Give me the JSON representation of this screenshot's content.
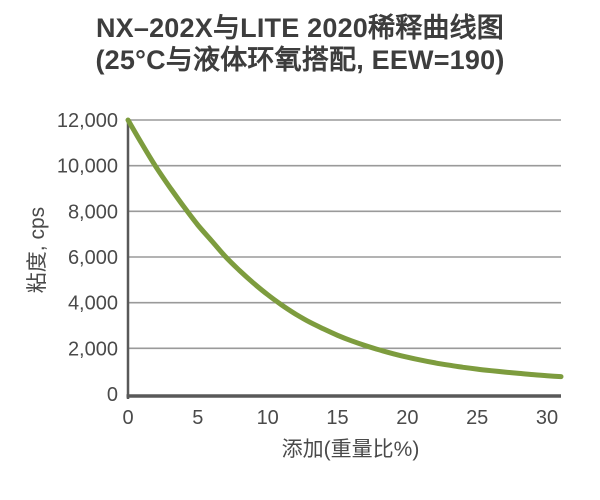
{
  "page": {
    "background": "#ffffff"
  },
  "header": {
    "title": "NX–202X与LITE 2020稀释曲线图",
    "subtitle": "(25°C与液体环氧搭配, EEW=190)",
    "color": "#3d3d3d"
  },
  "chart_data": {
    "type": "line",
    "title": "NX–202X与LITE 2020稀释曲线图",
    "subtitle": "(25°C与液体环氧搭配, EEW=190)",
    "xlabel": "添加(重量比%)",
    "ylabel": "粘度, cps",
    "xlim": [
      0,
      31
    ],
    "ylim": [
      0,
      12000
    ],
    "x_ticks": [
      0,
      5,
      10,
      15,
      20,
      25,
      30
    ],
    "x_tick_labels": [
      "0",
      "5",
      "10",
      "15",
      "20",
      "25",
      "30"
    ],
    "y_ticks": [
      0,
      2000,
      4000,
      6000,
      8000,
      10000,
      12000
    ],
    "y_tick_labels": [
      "0",
      "2,000",
      "4,000",
      "6,000",
      "8,000",
      "10,000",
      "12,000"
    ],
    "grid": "horizontal-only",
    "legend_position": "none",
    "grid_color": "#9a9a9a",
    "axis_color": "#595959",
    "tick_text_color": "#4a4a4a",
    "series": [
      {
        "color": "#7d9c3e",
        "line_width": 5,
        "x": [
          0,
          1,
          2,
          3,
          4,
          5,
          6,
          7,
          8,
          9,
          10,
          11,
          12,
          13,
          14,
          15,
          16,
          17,
          18,
          19,
          20,
          21,
          22,
          23,
          24,
          25,
          26,
          27,
          28,
          29,
          30,
          31
        ],
        "y": [
          12000,
          10950,
          9950,
          9050,
          8200,
          7400,
          6700,
          6000,
          5400,
          4850,
          4350,
          3900,
          3500,
          3150,
          2850,
          2570,
          2330,
          2120,
          1930,
          1760,
          1610,
          1480,
          1360,
          1260,
          1170,
          1090,
          1020,
          960,
          900,
          850,
          800,
          760
        ]
      }
    ]
  }
}
